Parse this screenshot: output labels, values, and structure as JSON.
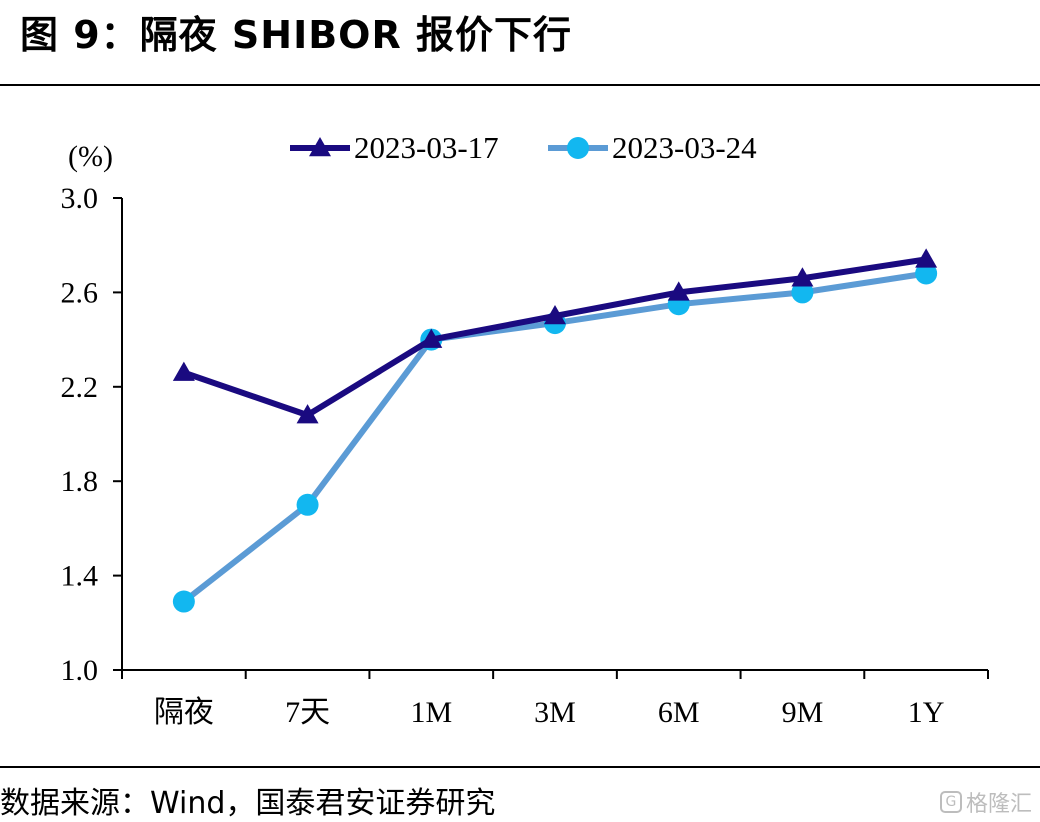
{
  "header": {
    "title": "图 9：隔夜 SHIBOR 报价下行"
  },
  "footer": {
    "source": "数据来源：Wind，国泰君安证券研究",
    "watermark": "格隆汇",
    "watermark_icon": "G"
  },
  "chart_data": {
    "type": "line",
    "title": "图 9：隔夜 SHIBOR 报价下行",
    "ylabel": "(%)",
    "xlabel": "",
    "categories": [
      "隔夜",
      "7天",
      "1M",
      "3M",
      "6M",
      "9M",
      "1Y"
    ],
    "ylim": [
      1.0,
      3.0
    ],
    "yticks": [
      1.0,
      1.4,
      1.8,
      2.2,
      2.6,
      3.0
    ],
    "ytick_labels": [
      "1.0",
      "1.4",
      "1.8",
      "2.2",
      "2.6",
      "3.0"
    ],
    "grid": false,
    "legend_position": "top-center",
    "series": [
      {
        "name": "2023-03-17",
        "values": [
          2.26,
          2.08,
          2.4,
          2.5,
          2.6,
          2.66,
          2.74
        ],
        "color": "#1a0a80",
        "marker": "triangle"
      },
      {
        "name": "2023-03-24",
        "values": [
          1.29,
          1.7,
          2.4,
          2.47,
          2.55,
          2.6,
          2.68
        ],
        "color": "#5b9bd5",
        "marker_color": "#12b7f0",
        "marker": "circle"
      }
    ]
  }
}
